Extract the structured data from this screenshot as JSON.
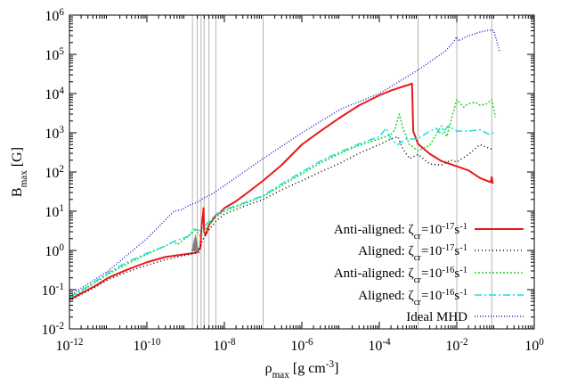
{
  "chart_data": {
    "type": "line",
    "xscale": "log",
    "yscale": "log",
    "xlim": [
      1e-12,
      1
    ],
    "ylim": [
      0.01,
      1000000
    ],
    "x_ticks": [
      {
        "value": 1e-12,
        "base": "10",
        "exp": "-12"
      },
      {
        "value": 1e-10,
        "base": "10",
        "exp": "-10"
      },
      {
        "value": 1e-08,
        "base": "10",
        "exp": "-8"
      },
      {
        "value": 1e-06,
        "base": "10",
        "exp": "-6"
      },
      {
        "value": 0.0001,
        "base": "10",
        "exp": "-4"
      },
      {
        "value": 0.01,
        "base": "10",
        "exp": "-2"
      },
      {
        "value": 1,
        "base": "10",
        "exp": "0"
      }
    ],
    "y_ticks": [
      {
        "value": 0.01,
        "base": "10",
        "exp": "-2"
      },
      {
        "value": 0.1,
        "base": "10",
        "exp": "-1"
      },
      {
        "value": 1,
        "base": "10",
        "exp": "0"
      },
      {
        "value": 10,
        "base": "10",
        "exp": "1"
      },
      {
        "value": 100,
        "base": "10",
        "exp": "2"
      },
      {
        "value": 1000,
        "base": "10",
        "exp": "3"
      },
      {
        "value": 10000,
        "base": "10",
        "exp": "4"
      },
      {
        "value": 100000,
        "base": "10",
        "exp": "5"
      },
      {
        "value": 1000000,
        "base": "10",
        "exp": "6"
      }
    ],
    "xlabel": {
      "main": "ρ",
      "sub": "max",
      "unit": " [g cm",
      "unit_exp": "-3",
      "unit_end": "]"
    },
    "ylabel": {
      "main": "B",
      "sub": "max",
      "unit": " [G]"
    },
    "grid": false,
    "legend_position": "bottom-right",
    "reference_lines_x": [
      1.5e-09,
      2e-09,
      2.5e-09,
      3e-09,
      4e-09,
      6e-09,
      1e-07,
      0.001,
      0.01,
      0.08
    ],
    "annotation_triangle": {
      "x": [
        1.4e-09,
        1.8e-09,
        2.2e-09
      ],
      "y": [
        0.95,
        2.7,
        0.95
      ],
      "color": "#808080"
    },
    "series": [
      {
        "legend": {
          "main": "Anti-aligned: ζ",
          "sub": "cr",
          "mid": "=10",
          "exp1": "-17",
          "unit": "s",
          "exp2": "-1"
        },
        "color": "#e8191a",
        "dash": "",
        "width": 2,
        "points": [
          [
            1e-12,
            0.055
          ],
          [
            2e-12,
            0.08
          ],
          [
            5e-12,
            0.13
          ],
          [
            1e-11,
            0.2
          ],
          [
            3e-11,
            0.32
          ],
          [
            1e-10,
            0.5
          ],
          [
            3e-10,
            0.68
          ],
          [
            8e-10,
            0.78
          ],
          [
            1.5e-09,
            0.85
          ],
          [
            2e-09,
            0.9
          ],
          [
            2.4e-09,
            1.2
          ],
          [
            2.6e-09,
            4.5
          ],
          [
            2.8e-09,
            8
          ],
          [
            2.9e-09,
            12
          ],
          [
            3e-09,
            3
          ],
          [
            3.3e-09,
            2.5
          ],
          [
            4e-09,
            4.5
          ],
          [
            5e-09,
            6
          ],
          [
            6e-09,
            8
          ],
          [
            8e-09,
            9.5
          ],
          [
            1e-08,
            12
          ],
          [
            2e-08,
            18
          ],
          [
            4e-08,
            30
          ],
          [
            1e-07,
            60
          ],
          [
            3e-07,
            150
          ],
          [
            1e-06,
            500
          ],
          [
            3e-06,
            1100
          ],
          [
            1e-05,
            2500
          ],
          [
            3e-05,
            5000
          ],
          [
            0.0001,
            9000
          ],
          [
            0.0002,
            12000
          ],
          [
            0.0004,
            15000
          ],
          [
            0.0006,
            17000
          ],
          [
            0.0007,
            18000
          ],
          [
            0.00075,
            1100
          ],
          [
            0.001,
            520
          ],
          [
            0.002,
            290
          ],
          [
            0.004,
            190
          ],
          [
            0.01,
            140
          ],
          [
            0.02,
            110
          ],
          [
            0.04,
            70
          ],
          [
            0.06,
            60
          ],
          [
            0.075,
            55
          ],
          [
            0.08,
            75
          ],
          [
            0.085,
            50
          ]
        ]
      },
      {
        "legend": {
          "main": "Aligned: ζ",
          "sub": "cr",
          "mid": "=10",
          "exp1": "-17",
          "unit": "s",
          "exp2": "-1"
        },
        "color": "#000000",
        "dash": "1,3",
        "width": 1.5,
        "points": [
          [
            1e-12,
            0.05
          ],
          [
            2e-12,
            0.075
          ],
          [
            5e-12,
            0.12
          ],
          [
            1e-11,
            0.18
          ],
          [
            3e-11,
            0.28
          ],
          [
            1e-10,
            0.42
          ],
          [
            3e-10,
            0.58
          ],
          [
            8e-10,
            0.72
          ],
          [
            1.5e-09,
            0.82
          ],
          [
            2.2e-09,
            0.9
          ],
          [
            2.6e-09,
            1.6
          ],
          [
            3e-09,
            2.2
          ],
          [
            4e-09,
            3.4
          ],
          [
            6e-09,
            5.5
          ],
          [
            1e-08,
            8.5
          ],
          [
            3e-08,
            13
          ],
          [
            1e-07,
            20
          ],
          [
            3e-07,
            35
          ],
          [
            1e-06,
            60
          ],
          [
            3e-06,
            100
          ],
          [
            1e-05,
            170
          ],
          [
            3e-05,
            300
          ],
          [
            0.0001,
            500
          ],
          [
            0.0002,
            700
          ],
          [
            0.0003,
            800
          ],
          [
            0.0004,
            400
          ],
          [
            0.0006,
            220
          ],
          [
            0.001,
            280
          ],
          [
            0.002,
            160
          ],
          [
            0.004,
            150
          ],
          [
            0.007,
            200
          ],
          [
            0.01,
            180
          ],
          [
            0.02,
            280
          ],
          [
            0.04,
            500
          ],
          [
            0.08,
            380
          ]
        ]
      },
      {
        "legend": {
          "main": "Anti-aligned: ζ",
          "sub": "cr",
          "mid": "=10",
          "exp1": "-16",
          "unit": "s",
          "exp2": "-1"
        },
        "color": "#23d423",
        "dash": "2,2",
        "width": 1.5,
        "points": [
          [
            1e-12,
            0.06
          ],
          [
            2e-12,
            0.09
          ],
          [
            5e-12,
            0.16
          ],
          [
            1e-11,
            0.25
          ],
          [
            3e-11,
            0.45
          ],
          [
            1e-10,
            0.8
          ],
          [
            3e-10,
            1.3
          ],
          [
            5e-10,
            1.7
          ],
          [
            6e-10,
            1.4
          ],
          [
            8e-10,
            1.7
          ],
          [
            1.2e-09,
            2.4
          ],
          [
            1.8e-09,
            3.3
          ],
          [
            2.4e-09,
            2.3
          ],
          [
            3e-09,
            3.2
          ],
          [
            4e-09,
            4.6
          ],
          [
            6e-09,
            7
          ],
          [
            1e-08,
            10
          ],
          [
            3e-08,
            15
          ],
          [
            1e-07,
            24
          ],
          [
            3e-07,
            45
          ],
          [
            1e-06,
            90
          ],
          [
            3e-06,
            170
          ],
          [
            1e-05,
            300
          ],
          [
            3e-05,
            480
          ],
          [
            0.0001,
            700
          ],
          [
            0.0002,
            900
          ],
          [
            0.00025,
            1200
          ],
          [
            0.0003,
            2200
          ],
          [
            0.00033,
            3000
          ],
          [
            0.0004,
            1400
          ],
          [
            0.0006,
            500
          ],
          [
            0.001,
            350
          ],
          [
            0.002,
            480
          ],
          [
            0.004,
            1500
          ],
          [
            0.0055,
            800
          ],
          [
            0.008,
            3200
          ],
          [
            0.01,
            7000
          ],
          [
            0.015,
            4500
          ],
          [
            0.02,
            5500
          ],
          [
            0.03,
            6000
          ],
          [
            0.04,
            5000
          ],
          [
            0.06,
            5500
          ],
          [
            0.08,
            7000
          ],
          [
            0.1,
            2500
          ]
        ]
      },
      {
        "legend": {
          "main": "Aligned: ζ",
          "sub": "cr",
          "mid": "=10",
          "exp1": "-16",
          "unit": "s",
          "exp2": "-1"
        },
        "color": "#12e0e0",
        "dash": "8,3,2,3",
        "width": 1.5,
        "points": [
          [
            1e-12,
            0.065
          ],
          [
            2e-12,
            0.095
          ],
          [
            5e-12,
            0.17
          ],
          [
            1e-11,
            0.27
          ],
          [
            3e-11,
            0.5
          ],
          [
            1e-10,
            0.85
          ],
          [
            3e-10,
            1.3
          ],
          [
            5e-10,
            1.7
          ],
          [
            8e-10,
            2
          ],
          [
            1.2e-09,
            2.3
          ],
          [
            1.6e-09,
            3.5
          ],
          [
            2.4e-09,
            3.2
          ],
          [
            3e-09,
            4
          ],
          [
            4e-09,
            5.5
          ],
          [
            6e-09,
            8
          ],
          [
            1e-08,
            11
          ],
          [
            3e-08,
            16
          ],
          [
            1e-07,
            25
          ],
          [
            3e-07,
            50
          ],
          [
            1e-06,
            100
          ],
          [
            3e-06,
            190
          ],
          [
            1e-05,
            330
          ],
          [
            3e-05,
            520
          ],
          [
            0.0001,
            800
          ],
          [
            0.00015,
            1300
          ],
          [
            0.0002,
            700
          ],
          [
            0.0003,
            500
          ],
          [
            0.0005,
            700
          ],
          [
            0.001,
            700
          ],
          [
            0.002,
            1100
          ],
          [
            0.003,
            1300
          ],
          [
            0.004,
            900
          ],
          [
            0.006,
            1500
          ],
          [
            0.01,
            1100
          ],
          [
            0.02,
            1100
          ],
          [
            0.04,
            1200
          ],
          [
            0.07,
            900
          ],
          [
            0.09,
            1000
          ]
        ]
      },
      {
        "legend": {
          "main": "Ideal MHD",
          "sub": "",
          "mid": "",
          "exp1": "",
          "unit": "",
          "exp2": ""
        },
        "color": "#2222cc",
        "dash": "1,2",
        "width": 1.5,
        "points": [
          [
            1e-12,
            0.07
          ],
          [
            1e-11,
            0.3
          ],
          [
            1e-10,
            2
          ],
          [
            4e-10,
            8
          ],
          [
            5e-10,
            10
          ],
          [
            8e-10,
            11
          ],
          [
            1.2e-09,
            14
          ],
          [
            2e-09,
            17
          ],
          [
            3e-09,
            22
          ],
          [
            5e-09,
            28
          ],
          [
            1e-08,
            45
          ],
          [
            1e-07,
            220
          ],
          [
            1e-06,
            1000
          ],
          [
            1e-05,
            4000
          ],
          [
            0.0001,
            10000
          ],
          [
            0.001,
            40000
          ],
          [
            0.005,
            120000
          ],
          [
            0.008,
            200000
          ],
          [
            0.01,
            280000
          ],
          [
            0.011,
            220000
          ],
          [
            0.02,
            300000
          ],
          [
            0.04,
            370000
          ],
          [
            0.07,
            420000
          ],
          [
            0.09,
            400000
          ],
          [
            0.11,
            200000
          ],
          [
            0.13,
            110000
          ]
        ]
      }
    ]
  }
}
